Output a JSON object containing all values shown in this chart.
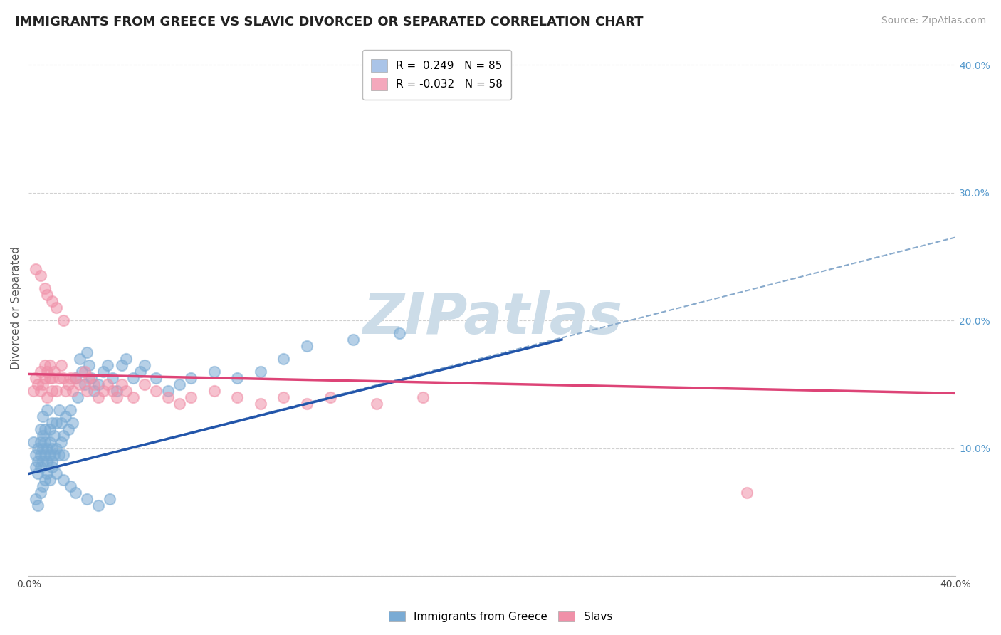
{
  "title": "IMMIGRANTS FROM GREECE VS SLAVIC DIVORCED OR SEPARATED CORRELATION CHART",
  "source_text": "Source: ZipAtlas.com",
  "ylabel": "Divorced or Separated",
  "xlim": [
    0.0,
    0.4
  ],
  "ylim": [
    0.0,
    0.42
  ],
  "xticks": [
    0.0,
    0.05,
    0.1,
    0.15,
    0.2,
    0.25,
    0.3,
    0.35,
    0.4
  ],
  "yticks": [
    0.0,
    0.1,
    0.2,
    0.3,
    0.4
  ],
  "legend_entries": [
    {
      "label": "R =  0.249   N = 85",
      "color": "#aac4e8"
    },
    {
      "label": "R = -0.032   N = 58",
      "color": "#f4a8bc"
    }
  ],
  "blue_scatter_x": [
    0.002,
    0.003,
    0.003,
    0.004,
    0.004,
    0.004,
    0.005,
    0.005,
    0.005,
    0.005,
    0.006,
    0.006,
    0.006,
    0.006,
    0.007,
    0.007,
    0.007,
    0.008,
    0.008,
    0.008,
    0.009,
    0.009,
    0.009,
    0.01,
    0.01,
    0.01,
    0.011,
    0.011,
    0.012,
    0.012,
    0.013,
    0.013,
    0.014,
    0.014,
    0.015,
    0.015,
    0.016,
    0.017,
    0.018,
    0.019,
    0.02,
    0.021,
    0.022,
    0.023,
    0.024,
    0.025,
    0.026,
    0.027,
    0.028,
    0.03,
    0.032,
    0.034,
    0.036,
    0.038,
    0.04,
    0.042,
    0.045,
    0.048,
    0.05,
    0.055,
    0.06,
    0.065,
    0.07,
    0.08,
    0.09,
    0.1,
    0.11,
    0.12,
    0.14,
    0.16,
    0.003,
    0.004,
    0.005,
    0.006,
    0.007,
    0.008,
    0.009,
    0.01,
    0.012,
    0.015,
    0.018,
    0.02,
    0.025,
    0.03,
    0.035
  ],
  "blue_scatter_y": [
    0.105,
    0.095,
    0.085,
    0.09,
    0.08,
    0.1,
    0.095,
    0.085,
    0.105,
    0.115,
    0.09,
    0.1,
    0.11,
    0.125,
    0.095,
    0.105,
    0.115,
    0.09,
    0.1,
    0.13,
    0.095,
    0.105,
    0.115,
    0.09,
    0.1,
    0.12,
    0.095,
    0.11,
    0.1,
    0.12,
    0.095,
    0.13,
    0.105,
    0.12,
    0.095,
    0.11,
    0.125,
    0.115,
    0.13,
    0.12,
    0.155,
    0.14,
    0.17,
    0.16,
    0.15,
    0.175,
    0.165,
    0.155,
    0.145,
    0.15,
    0.16,
    0.165,
    0.155,
    0.145,
    0.165,
    0.17,
    0.155,
    0.16,
    0.165,
    0.155,
    0.145,
    0.15,
    0.155,
    0.16,
    0.155,
    0.16,
    0.17,
    0.18,
    0.185,
    0.19,
    0.06,
    0.055,
    0.065,
    0.07,
    0.075,
    0.08,
    0.075,
    0.085,
    0.08,
    0.075,
    0.07,
    0.065,
    0.06,
    0.055,
    0.06
  ],
  "pink_scatter_x": [
    0.002,
    0.003,
    0.004,
    0.005,
    0.005,
    0.006,
    0.007,
    0.007,
    0.008,
    0.008,
    0.009,
    0.009,
    0.01,
    0.01,
    0.011,
    0.012,
    0.013,
    0.014,
    0.015,
    0.016,
    0.017,
    0.018,
    0.019,
    0.02,
    0.022,
    0.024,
    0.025,
    0.026,
    0.028,
    0.03,
    0.032,
    0.034,
    0.036,
    0.038,
    0.04,
    0.042,
    0.045,
    0.05,
    0.055,
    0.06,
    0.065,
    0.07,
    0.08,
    0.09,
    0.1,
    0.11,
    0.12,
    0.13,
    0.15,
    0.17,
    0.003,
    0.005,
    0.007,
    0.008,
    0.01,
    0.012,
    0.015,
    0.31
  ],
  "pink_scatter_y": [
    0.145,
    0.155,
    0.15,
    0.145,
    0.16,
    0.15,
    0.155,
    0.165,
    0.14,
    0.16,
    0.155,
    0.165,
    0.145,
    0.155,
    0.16,
    0.145,
    0.155,
    0.165,
    0.155,
    0.145,
    0.15,
    0.155,
    0.145,
    0.155,
    0.15,
    0.16,
    0.145,
    0.155,
    0.15,
    0.14,
    0.145,
    0.15,
    0.145,
    0.14,
    0.15,
    0.145,
    0.14,
    0.15,
    0.145,
    0.14,
    0.135,
    0.14,
    0.145,
    0.14,
    0.135,
    0.14,
    0.135,
    0.14,
    0.135,
    0.14,
    0.24,
    0.235,
    0.225,
    0.22,
    0.215,
    0.21,
    0.2,
    0.065
  ],
  "blue_line_x": [
    0.0,
    0.23
  ],
  "blue_line_y_start": 0.08,
  "blue_line_y_end": 0.185,
  "blue_dashed_line_x": [
    0.0,
    0.4
  ],
  "blue_dashed_line_y_start": 0.08,
  "blue_dashed_line_y_end": 0.265,
  "pink_line_x": [
    0.0,
    0.4
  ],
  "pink_line_y_start": 0.158,
  "pink_line_y_end": 0.143,
  "background_color": "#ffffff",
  "plot_bg_color": "#ffffff",
  "grid_color": "#cccccc",
  "scatter_alpha": 0.55,
  "scatter_size": 120,
  "blue_color": "#7aabd4",
  "pink_color": "#f090a8",
  "blue_line_color": "#2255aa",
  "blue_dashed_color": "#88aacc",
  "pink_line_color": "#dd4477",
  "watermark_text": "ZIPatlas",
  "watermark_color": "#ccdce8",
  "watermark_fontsize": 58,
  "title_fontsize": 13,
  "axis_label_fontsize": 11,
  "tick_fontsize": 10,
  "legend_fontsize": 11,
  "source_fontsize": 10,
  "right_tick_color": "#5599cc"
}
